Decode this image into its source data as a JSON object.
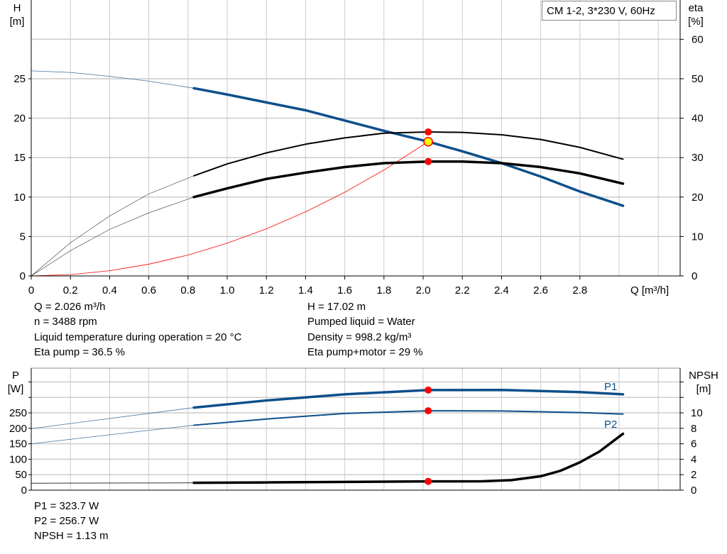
{
  "legend_title": "CM 1-2, 3*230 V, 60Hz",
  "colors": {
    "head": "#0d4f8b",
    "eta": "#000000",
    "system": "#ff0000",
    "power": "#0d4f8b",
    "npsh": "#000000",
    "duty_point": "#ffff00",
    "marker": "#ff0000",
    "grid": "#cccccc"
  },
  "chart_data": [
    {
      "type": "line",
      "xlabel": "Q [m³/h]",
      "ylabel": "H",
      "ylabel_unit": "[m]",
      "y2label": "eta",
      "y2label_unit": "[%]",
      "xlim": [
        0,
        3.31
      ],
      "ylim": [
        0,
        35
      ],
      "y2lim": [
        0,
        70
      ],
      "grid": true,
      "x_ticks": [
        "0",
        "0.2",
        "0.4",
        "0.6",
        "0.8",
        "1.0",
        "1.2",
        "1.4",
        "1.6",
        "1.8",
        "2.0",
        "2.2",
        "2.4",
        "2.6",
        "2.8"
      ],
      "y_ticks": [
        "0",
        "5",
        "10",
        "15",
        "20",
        "25"
      ],
      "y2_ticks": [
        "0",
        "10",
        "20",
        "30",
        "40",
        "50",
        "60"
      ],
      "series": [
        {
          "axis": "H",
          "x": [
            0,
            0.2,
            0.4,
            0.6,
            0.83,
            1.0,
            1.2,
            1.4,
            1.6,
            1.8,
            2.026,
            2.2,
            2.4,
            2.6,
            2.8,
            3.02
          ],
          "y": [
            26,
            25.8,
            25.3,
            24.7,
            23.8,
            23.0,
            22.0,
            21.0,
            19.7,
            18.4,
            17.02,
            15.8,
            14.3,
            12.6,
            10.7,
            8.9
          ]
        },
        {
          "axis": "eta",
          "x": [
            0,
            0.2,
            0.4,
            0.6,
            0.83,
            1.0,
            1.2,
            1.4,
            1.6,
            1.8,
            2.026,
            2.2,
            2.4,
            2.6,
            2.8,
            3.02
          ],
          "y": [
            0,
            8.4,
            15.2,
            20.8,
            25.4,
            28.4,
            31.2,
            33.4,
            35,
            36.2,
            36.5,
            36.4,
            35.8,
            34.6,
            32.6,
            29.6
          ]
        },
        {
          "axis": "eta",
          "x": [
            0,
            0.2,
            0.4,
            0.6,
            0.83,
            1.0,
            1.2,
            1.4,
            1.6,
            1.8,
            2.026,
            2.2,
            2.4,
            2.6,
            2.8,
            3.02
          ],
          "y": [
            0,
            6.4,
            11.8,
            16,
            20,
            22.2,
            24.6,
            26.2,
            27.6,
            28.6,
            29,
            29,
            28.6,
            27.6,
            26,
            23.4
          ]
        },
        {
          "axis": "H",
          "x": [
            0,
            0.2,
            0.4,
            0.6,
            0.8,
            1.0,
            1.2,
            1.4,
            1.6,
            1.8,
            2.026
          ],
          "y": [
            0,
            0.17,
            0.66,
            1.49,
            2.65,
            4.15,
            5.97,
            8.13,
            10.61,
            13.43,
            17.02
          ]
        }
      ],
      "operating_range_start": 0.83,
      "duty_point": {
        "Q": 2.026,
        "H": 17.02,
        "eta_pump": 36.5,
        "eta_pump_motor": 29
      }
    },
    {
      "type": "line",
      "ylabel": "P",
      "ylabel_unit": "[W]",
      "y2label": "NPSH",
      "y2label_unit": "[m]",
      "xlim": [
        0,
        3.31
      ],
      "ylim": [
        0,
        394
      ],
      "y2lim": [
        0,
        15.8
      ],
      "grid": true,
      "y_ticks": [
        "0",
        "50",
        "100",
        "150",
        "200",
        "250"
      ],
      "y2_ticks": [
        "0",
        "2",
        "4",
        "6",
        "8",
        "10"
      ],
      "series": [
        {
          "name": "P1",
          "axis": "P",
          "x": [
            0,
            0.83,
            1.2,
            1.6,
            2.026,
            2.4,
            2.8,
            3.02
          ],
          "y": [
            199,
            267,
            290,
            310,
            323.7,
            324,
            317,
            310
          ]
        },
        {
          "name": "P2",
          "axis": "P",
          "x": [
            0,
            0.83,
            1.2,
            1.6,
            2.026,
            2.4,
            2.8,
            3.02
          ],
          "y": [
            150,
            210,
            230,
            248,
            256.7,
            256,
            251,
            246
          ]
        },
        {
          "axis": "NPSH",
          "x": [
            0,
            0.83,
            1.2,
            1.6,
            2.026,
            2.3,
            2.45,
            2.6,
            2.7,
            2.8,
            2.9,
            3.02
          ],
          "y": [
            0.9,
            0.95,
            1.0,
            1.07,
            1.13,
            1.15,
            1.3,
            1.8,
            2.5,
            3.6,
            5.0,
            7.3
          ]
        }
      ]
    }
  ],
  "info": {
    "q": "Q = 2.026 m³/h",
    "n": "n = 3488 rpm",
    "temp": "Liquid temperature during operation = 20 °C",
    "eta_pump": "Eta pump = 36.5 %",
    "h": "H = 17.02 m",
    "liquid": "Pumped liquid = Water",
    "density": "Density = 998.2 kg/m³",
    "eta_pm": "Eta pump+motor = 29 %",
    "p1": "P1 = 323.7 W",
    "p2": "P2 = 256.7 W",
    "npsh": "NPSH = 1.13 m"
  }
}
